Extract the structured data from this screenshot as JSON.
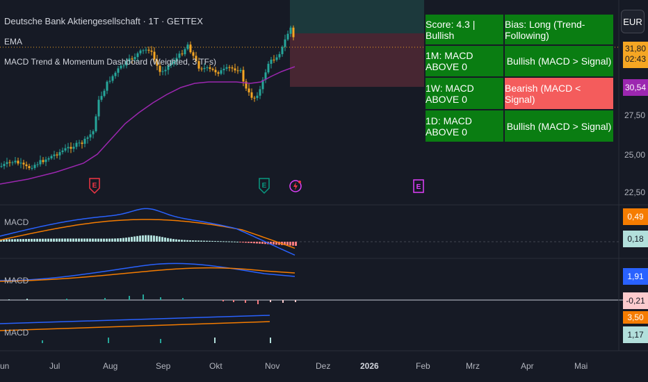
{
  "header": {
    "title": "Deutsche Bank Aktiengesellschaft · 1T · GETTEX",
    "indicator_1": "EMA",
    "indicator_2": "MACD Trend & Momentum Dashboard (Weighted, 3 TFs)"
  },
  "currency_button": "EUR",
  "dashboard": {
    "rows": [
      {
        "left": "Score: 4.3 | Bullish",
        "right": "Bias: Long (Trend-Following)",
        "left_color": "#0a7d12",
        "right_color": "#0a7d12"
      },
      {
        "left": "1M: MACD ABOVE 0",
        "right": "Bullish (MACD > Signal)",
        "left_color": "#0a7d12",
        "right_color": "#0a7d12"
      },
      {
        "left": "1W: MACD ABOVE 0",
        "right": "Bearish (MACD < Signal)",
        "left_color": "#0a7d12",
        "right_color": "#f45c5c"
      },
      {
        "left": "1D: MACD ABOVE 0",
        "right": "Bullish (MACD > Signal)",
        "left_color": "#0a7d12",
        "right_color": "#0a7d12"
      }
    ]
  },
  "price_axis": {
    "ticks": [
      "27,50",
      "25,00",
      "22,50"
    ],
    "last_price": "31,80",
    "countdown": "02:43",
    "ema_value": "30,54"
  },
  "macd_panes": [
    {
      "label": "MACD",
      "tags": [
        {
          "text": "0,49",
          "color": "#f57c00"
        },
        {
          "text": "0,18",
          "color": "#b2dfdb"
        }
      ]
    },
    {
      "label": "MACD",
      "tags": [
        {
          "text": "1,91",
          "color": "#2962ff"
        },
        {
          "text": "-0,21",
          "color": "#fccbcd"
        }
      ]
    },
    {
      "label": "MACD",
      "tags": [
        {
          "text": "3,50",
          "color": "#f57c00"
        },
        {
          "text": "1,17",
          "color": "#b2dfdb"
        }
      ]
    }
  ],
  "time_axis": [
    "un",
    "Jul",
    "Aug",
    "Sep",
    "Okt",
    "Nov",
    "Dez",
    "2026",
    "Feb",
    "Mrz",
    "Apr",
    "Mai"
  ],
  "event_badges": [
    {
      "label": "E",
      "color": "#f23645",
      "kind": "earnings-red"
    },
    {
      "label": "E",
      "color": "#089981",
      "kind": "earnings-green"
    },
    {
      "label": "E",
      "color": "#e040fb",
      "kind": "earnings-purple"
    }
  ],
  "colors": {
    "up": "#26a69a",
    "down": "#f5a623",
    "ema": "#9c27b0",
    "macd": "#2962ff",
    "signal": "#f57c00"
  }
}
